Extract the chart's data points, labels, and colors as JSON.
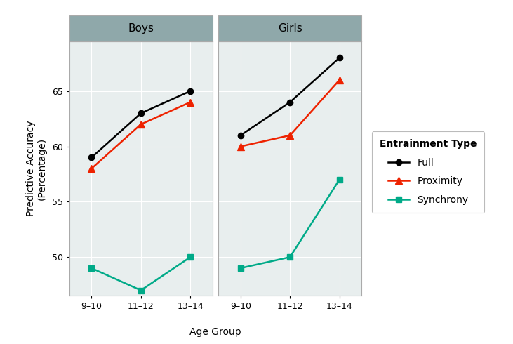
{
  "panels": [
    "Boys",
    "Girls"
  ],
  "age_groups": [
    "9–10",
    "11–12",
    "13–14"
  ],
  "series": {
    "Full": {
      "color": "#000000",
      "marker": "o",
      "marker_size": 6,
      "boys": [
        59.0,
        63.0,
        65.0
      ],
      "girls": [
        61.0,
        64.0,
        68.0
      ]
    },
    "Proximity": {
      "color": "#EE2200",
      "marker": "^",
      "marker_size": 7,
      "boys": [
        58.0,
        62.0,
        64.0
      ],
      "girls": [
        60.0,
        61.0,
        66.0
      ]
    },
    "Synchrony": {
      "color": "#00AA88",
      "marker": "s",
      "marker_size": 6,
      "boys": [
        49.0,
        47.0,
        50.0
      ],
      "girls": [
        49.0,
        50.0,
        57.0
      ]
    }
  },
  "ylabel": "Predictive Accuracy\n(Percentage)",
  "xlabel": "Age Group",
  "legend_title": "Entrainment Type",
  "ylim": [
    46.5,
    69.5
  ],
  "yticks": [
    50,
    55,
    60,
    65
  ],
  "panel_bg": "#E8EEEE",
  "header_bg": "#8FA8AA",
  "header_text_color": "#000000",
  "grid_color": "#FFFFFF",
  "spine_color": "#AAAAAA",
  "line_width": 1.8,
  "title_fontsize": 11,
  "axis_fontsize": 10,
  "tick_fontsize": 9,
  "legend_fontsize": 10,
  "fig_bg": "#FFFFFF"
}
